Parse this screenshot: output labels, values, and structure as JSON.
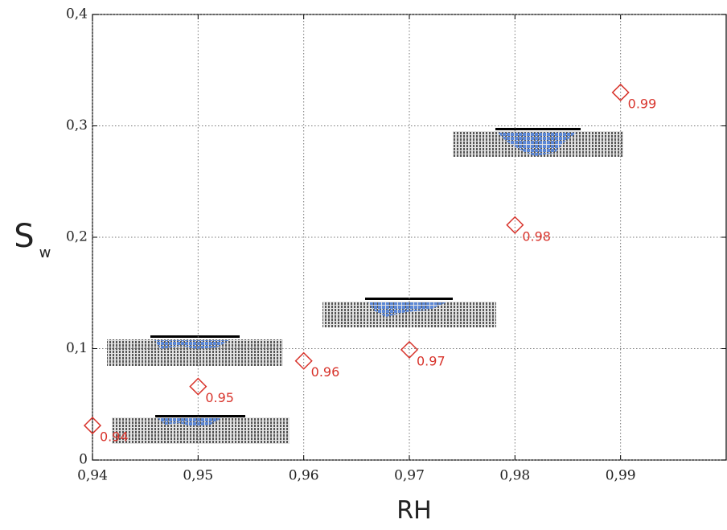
{
  "chart_data": {
    "type": "scatter",
    "marker": "diamond",
    "color": "#d8342c",
    "xlabel": "RH",
    "ylabel": "S",
    "ylabel_subscript": "w",
    "x": [
      0.94,
      0.95,
      0.96,
      0.97,
      0.98,
      0.99
    ],
    "values": [
      0.031,
      0.066,
      0.089,
      0.099,
      0.211,
      0.33
    ],
    "labels": [
      "0.94",
      "0.95",
      "0.96",
      "0.97",
      "0.98",
      "0.99"
    ],
    "xlim": [
      0.94,
      1.0
    ],
    "xticks": [
      {
        "value": 0.94,
        "label": "0,94"
      },
      {
        "value": 0.95,
        "label": "0,95"
      },
      {
        "value": 0.96,
        "label": "0,96"
      },
      {
        "value": 0.97,
        "label": "0,97"
      },
      {
        "value": 0.98,
        "label": "0,98"
      },
      {
        "value": 0.99,
        "label": "0,99"
      }
    ],
    "ylim": [
      0,
      0.4
    ],
    "yticks": [
      0,
      {
        "value": 0.1,
        "label": "0,1"
      },
      {
        "value": 0.2,
        "label": "0,2"
      },
      {
        "value": 0.3,
        "label": "0,3"
      },
      {
        "value": 0.4,
        "label": "0,4"
      }
    ],
    "grid": true
  }
}
